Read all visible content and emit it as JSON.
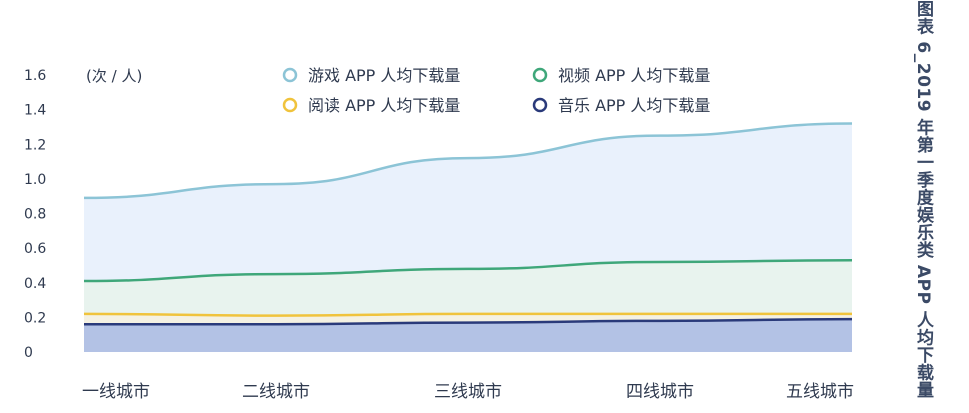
{
  "side_title": "图表 6_2019 年第一季度娱乐类 APP 人均下载量",
  "chart_data": {
    "type": "area",
    "title": "图表 6_2019 年第一季度娱乐类 APP 人均下载量",
    "ylabel": "(次 / 人)",
    "xlabel": "",
    "categories": [
      "一线城市",
      "二线城市",
      "三线城市",
      "四线城市",
      "五线城市"
    ],
    "ylim": [
      0,
      1.6
    ],
    "yticks": [
      "0",
      "0.2",
      "0.4",
      "0.6",
      "0.8",
      "1.0",
      "1.2",
      "1.4",
      "1.6"
    ],
    "grid": false,
    "legend_position": "top",
    "series": [
      {
        "name": "游戏 APP 人均下载量",
        "values": [
          0.89,
          0.97,
          1.12,
          1.25,
          1.32
        ],
        "color": "#8cc4d6",
        "fill": "#e9f1fc"
      },
      {
        "name": "视频 APP 人均下载量",
        "values": [
          0.41,
          0.45,
          0.48,
          0.52,
          0.53
        ],
        "color": "#3fa77a",
        "fill": "#e8f3ee"
      },
      {
        "name": "阅读 APP 人均下载量",
        "values": [
          0.22,
          0.21,
          0.22,
          0.22,
          0.22
        ],
        "color": "#f0c33c",
        "fill": "#f4f1e3"
      },
      {
        "name": "音乐 APP 人均下载量",
        "values": [
          0.16,
          0.16,
          0.17,
          0.18,
          0.19
        ],
        "color": "#2a3a7a",
        "fill": "#b3c2e5"
      }
    ]
  }
}
